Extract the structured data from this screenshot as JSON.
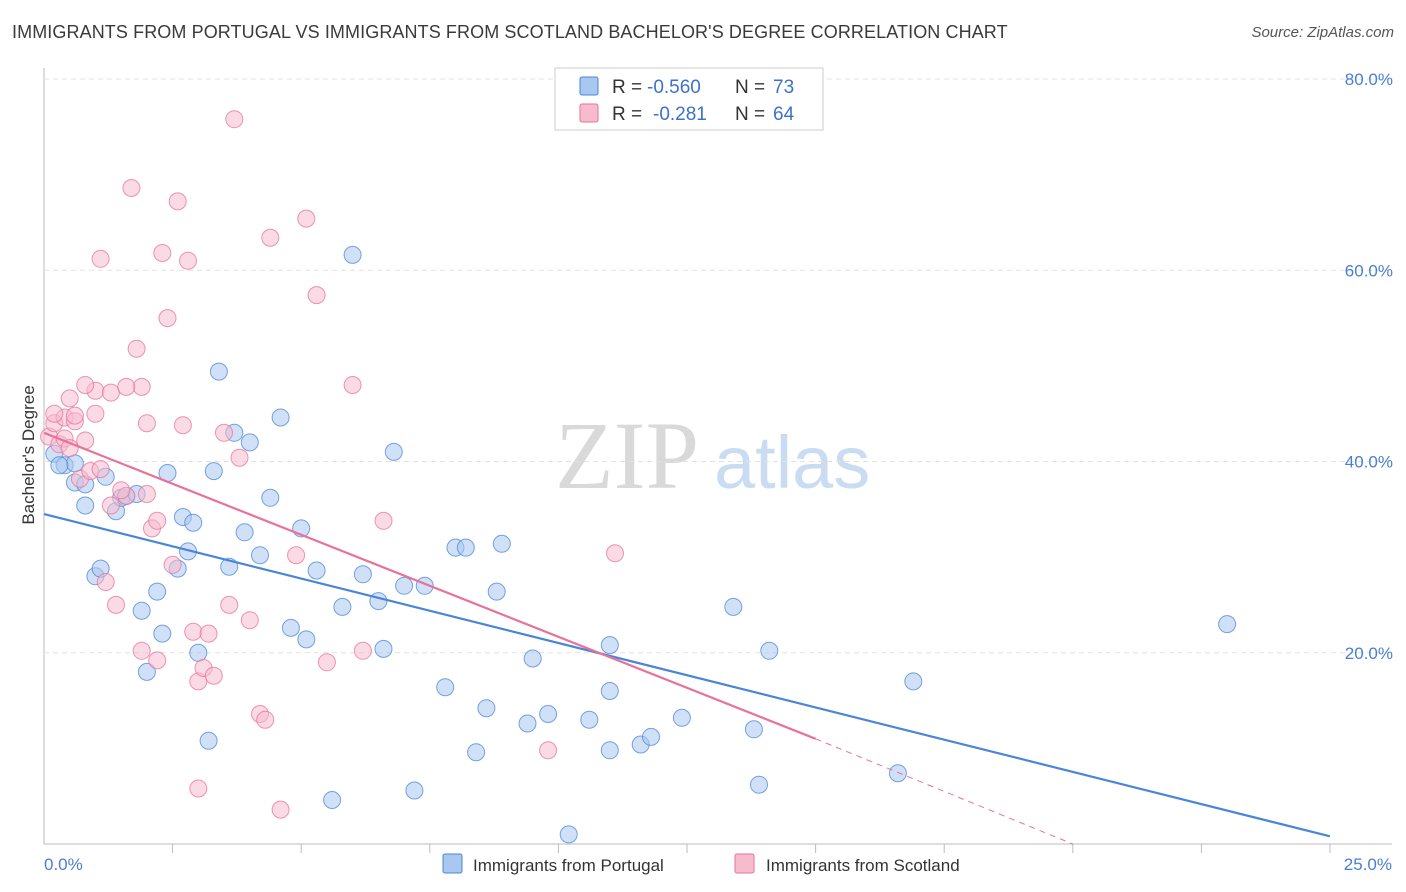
{
  "header": {
    "title": "IMMIGRANTS FROM PORTUGAL VS IMMIGRANTS FROM SCOTLAND BACHELOR'S DEGREE CORRELATION CHART",
    "source": "Source: ZipAtlas.com"
  },
  "watermark": {
    "zip": "ZIP",
    "atlas": "atlas"
  },
  "colors": {
    "portugal": "#4a86d8",
    "portugal_fill": "#a9c8f0",
    "scotland": "#e8729a",
    "scotland_fill": "#f6bccd",
    "axis_tick": "#4a7fd0"
  },
  "stats": {
    "portugal": {
      "r_label": "R =",
      "r_value": "-0.560",
      "n_label": "N =",
      "n_value": "73"
    },
    "scotland": {
      "r_label": "R =",
      "r_value": "-0.281",
      "n_label": "N =",
      "n_value": "64"
    }
  },
  "chart_data": {
    "type": "scatter",
    "title": "IMMIGRANTS FROM PORTUGAL VS IMMIGRANTS FROM SCOTLAND BACHELOR'S DEGREE CORRELATION CHART",
    "xlabel": "",
    "ylabel": "Bachelor's Degree",
    "xlim": [
      0,
      25
    ],
    "ylim": [
      0,
      80
    ],
    "x_tick_labels": [
      "0.0%",
      "25.0%"
    ],
    "y_tick_labels": [
      "20.0%",
      "40.0%",
      "60.0%",
      "80.0%"
    ],
    "y_ticks": [
      20,
      40,
      60,
      80
    ],
    "grid": true,
    "legend_position": "bottom-center",
    "series": [
      {
        "name": "Immigrants from Portugal",
        "color": "#4a86d8",
        "trend": {
          "x": [
            0,
            25
          ],
          "y": [
            34.5,
            0.8
          ]
        },
        "points": [
          [
            0.2,
            40.8
          ],
          [
            0.4,
            39.6
          ],
          [
            0.6,
            37.8
          ],
          [
            0.6,
            39.8
          ],
          [
            0.8,
            37.6
          ],
          [
            0.8,
            35.4
          ],
          [
            1.0,
            28.0
          ],
          [
            1.1,
            28.8
          ],
          [
            1.2,
            38.4
          ],
          [
            1.4,
            34.8
          ],
          [
            1.5,
            36.2
          ],
          [
            1.6,
            36.4
          ],
          [
            1.8,
            36.6
          ],
          [
            1.9,
            24.4
          ],
          [
            2.0,
            18.0
          ],
          [
            2.2,
            26.4
          ],
          [
            2.3,
            22.0
          ],
          [
            2.4,
            38.8
          ],
          [
            2.6,
            28.8
          ],
          [
            2.7,
            34.2
          ],
          [
            2.8,
            30.6
          ],
          [
            2.9,
            33.6
          ],
          [
            3.0,
            20.0
          ],
          [
            3.2,
            10.8
          ],
          [
            3.3,
            39.0
          ],
          [
            3.4,
            49.4
          ],
          [
            3.6,
            29.0
          ],
          [
            3.7,
            43.0
          ],
          [
            3.9,
            32.6
          ],
          [
            4.0,
            42.0
          ],
          [
            4.2,
            30.2
          ],
          [
            4.4,
            36.2
          ],
          [
            4.6,
            44.6
          ],
          [
            4.8,
            22.6
          ],
          [
            5.0,
            33.0
          ],
          [
            5.1,
            21.4
          ],
          [
            5.3,
            28.6
          ],
          [
            5.6,
            4.6
          ],
          [
            5.8,
            24.8
          ],
          [
            6.0,
            61.6
          ],
          [
            6.2,
            28.2
          ],
          [
            6.5,
            25.4
          ],
          [
            6.6,
            20.4
          ],
          [
            6.8,
            41.0
          ],
          [
            7.0,
            27.0
          ],
          [
            7.2,
            5.6
          ],
          [
            7.4,
            27.0
          ],
          [
            7.8,
            16.4
          ],
          [
            8.0,
            31.0
          ],
          [
            8.2,
            31.0
          ],
          [
            8.4,
            9.6
          ],
          [
            8.6,
            14.2
          ],
          [
            8.8,
            26.4
          ],
          [
            8.9,
            31.4
          ],
          [
            9.4,
            12.6
          ],
          [
            9.5,
            19.4
          ],
          [
            9.8,
            13.6
          ],
          [
            10.2,
            1.0
          ],
          [
            10.6,
            13.0
          ],
          [
            11.0,
            16.0
          ],
          [
            11.0,
            9.8
          ],
          [
            11.0,
            20.8
          ],
          [
            11.6,
            10.4
          ],
          [
            11.8,
            11.2
          ],
          [
            12.4,
            13.2
          ],
          [
            13.4,
            24.8
          ],
          [
            13.8,
            12.0
          ],
          [
            13.9,
            6.2
          ],
          [
            14.1,
            20.2
          ],
          [
            16.6,
            7.4
          ],
          [
            16.9,
            17.0
          ],
          [
            23.0,
            23.0
          ],
          [
            0.3,
            39.6
          ]
        ]
      },
      {
        "name": "Immigrants from Scotland",
        "color": "#e8729a",
        "trend": {
          "x": [
            0,
            15
          ],
          "y": [
            43.0,
            11.0
          ],
          "dash_to": [
            20,
            0
          ]
        },
        "points": [
          [
            0.1,
            42.6
          ],
          [
            0.2,
            44.0
          ],
          [
            0.3,
            41.8
          ],
          [
            0.4,
            44.6
          ],
          [
            0.5,
            46.6
          ],
          [
            0.6,
            44.2
          ],
          [
            0.6,
            44.8
          ],
          [
            0.7,
            38.2
          ],
          [
            0.8,
            42.2
          ],
          [
            0.9,
            39.0
          ],
          [
            1.0,
            45.0
          ],
          [
            1.0,
            47.4
          ],
          [
            1.1,
            61.2
          ],
          [
            1.2,
            27.4
          ],
          [
            1.3,
            35.4
          ],
          [
            1.3,
            47.2
          ],
          [
            1.4,
            25.0
          ],
          [
            1.6,
            36.4
          ],
          [
            1.7,
            68.6
          ],
          [
            1.8,
            51.8
          ],
          [
            1.9,
            47.8
          ],
          [
            1.9,
            20.2
          ],
          [
            2.0,
            44.0
          ],
          [
            2.0,
            36.6
          ],
          [
            2.1,
            33.0
          ],
          [
            2.2,
            19.2
          ],
          [
            2.3,
            61.8
          ],
          [
            2.4,
            55.0
          ],
          [
            2.5,
            29.2
          ],
          [
            2.6,
            67.2
          ],
          [
            2.7,
            43.8
          ],
          [
            2.8,
            61.0
          ],
          [
            2.9,
            22.2
          ],
          [
            3.0,
            17.0
          ],
          [
            3.1,
            18.4
          ],
          [
            3.2,
            22.0
          ],
          [
            3.3,
            17.6
          ],
          [
            3.5,
            43.0
          ],
          [
            3.6,
            25.0
          ],
          [
            3.7,
            75.8
          ],
          [
            3.8,
            40.4
          ],
          [
            4.0,
            23.4
          ],
          [
            4.2,
            13.6
          ],
          [
            4.3,
            13.0
          ],
          [
            4.4,
            63.4
          ],
          [
            4.6,
            3.6
          ],
          [
            4.9,
            30.2
          ],
          [
            5.1,
            65.4
          ],
          [
            5.3,
            57.4
          ],
          [
            5.5,
            19.0
          ],
          [
            6.0,
            48.0
          ],
          [
            6.2,
            20.2
          ],
          [
            6.6,
            33.8
          ],
          [
            9.8,
            9.8
          ],
          [
            11.1,
            30.4
          ],
          [
            0.4,
            42.4
          ],
          [
            0.5,
            41.4
          ],
          [
            0.2,
            45.0
          ],
          [
            1.6,
            47.8
          ],
          [
            2.2,
            33.8
          ],
          [
            1.1,
            39.2
          ],
          [
            3.0,
            5.8
          ],
          [
            1.5,
            37.0
          ],
          [
            0.8,
            48.0
          ]
        ]
      }
    ]
  },
  "legend": {
    "portugal_label": "Immigrants from Portugal",
    "scotland_label": "Immigrants from Scotland"
  }
}
